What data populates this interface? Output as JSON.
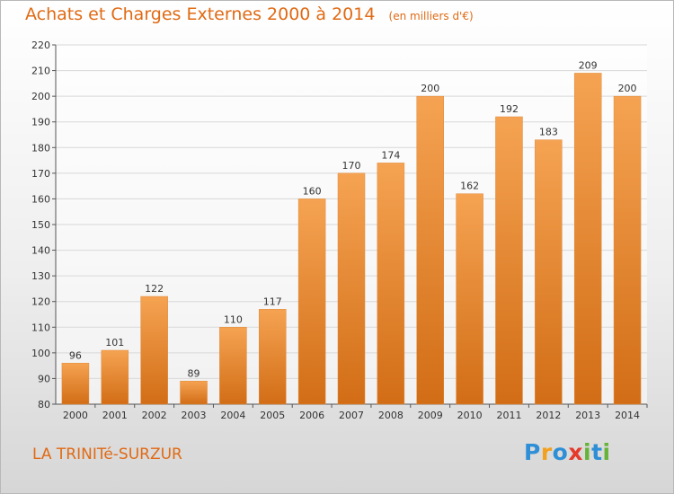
{
  "title": "Achats et Charges Externes 2000 à 2014",
  "unit_note": "(en milliers d'€)",
  "commune": "LA TRINITé-SURZUR",
  "logo": {
    "text": "Proxiti",
    "colors": [
      "#2e8fd6",
      "#f2a11e",
      "#e53a2c",
      "#67b33a"
    ]
  },
  "colors": {
    "bar": "#f0933a",
    "accent": "#e06a14",
    "grid": "#d8d8d8"
  },
  "chart_data": {
    "type": "bar",
    "title": "Achats et Charges Externes 2000 à 2014",
    "subtitle": "(en milliers d'€)",
    "xlabel": "",
    "ylabel": "",
    "categories": [
      "2000",
      "2001",
      "2002",
      "2003",
      "2004",
      "2005",
      "2006",
      "2007",
      "2008",
      "2009",
      "2010",
      "2011",
      "2012",
      "2013",
      "2014"
    ],
    "values": [
      96,
      101,
      122,
      89,
      110,
      117,
      160,
      170,
      174,
      200,
      162,
      192,
      183,
      209,
      200
    ],
    "ylim": [
      80,
      220
    ],
    "yticks": [
      80,
      90,
      100,
      110,
      120,
      130,
      140,
      150,
      160,
      170,
      180,
      190,
      200,
      210,
      220
    ],
    "grid": true,
    "legend": "none"
  }
}
